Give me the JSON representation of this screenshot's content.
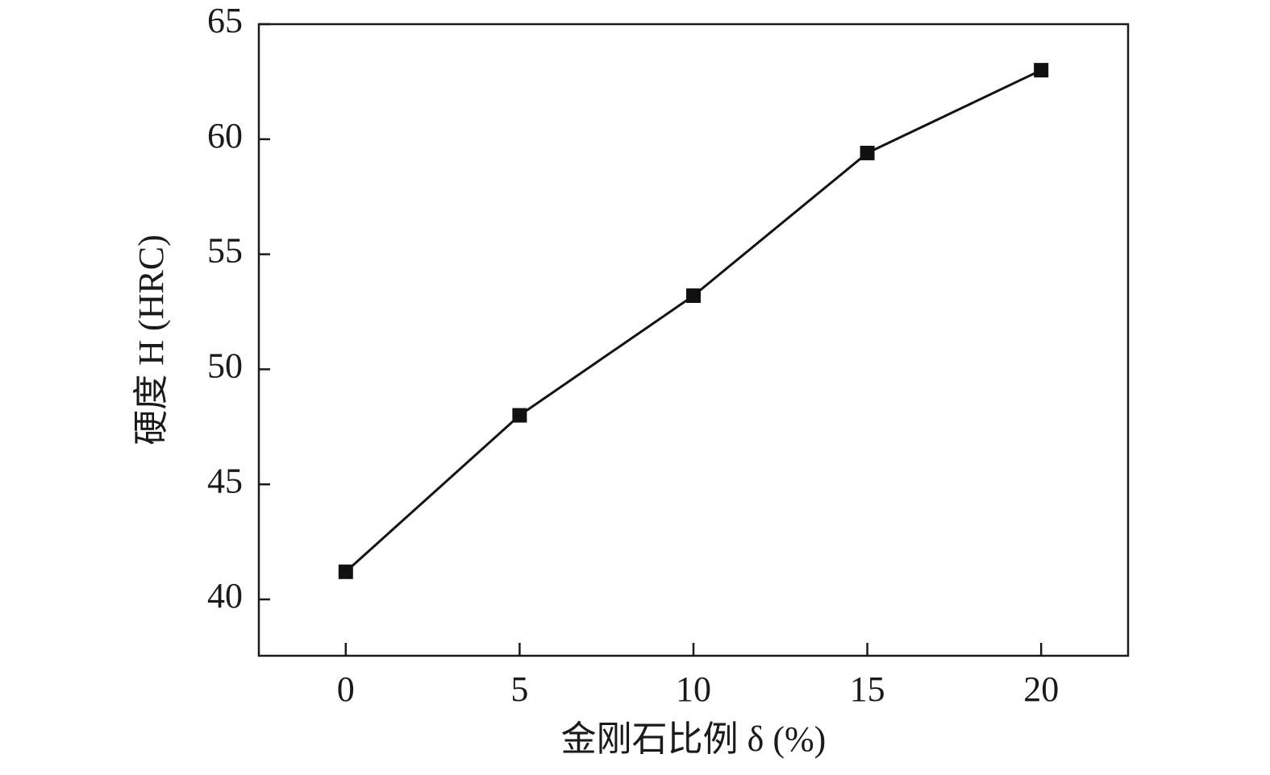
{
  "chart_data": {
    "type": "line",
    "x_label": "金刚石比例 δ (%)",
    "y_label": "硬度 H (HRC)",
    "x": [
      0,
      5,
      10,
      15,
      20
    ],
    "values": [
      41.2,
      48.0,
      53.2,
      59.4,
      63.0
    ],
    "color": "#111111",
    "marker": "square",
    "xlim": [
      -2.5,
      22.5
    ],
    "xticks": [
      0,
      5,
      10,
      15,
      20
    ],
    "ylim": [
      37.55,
      65
    ],
    "yticks": [
      40,
      45,
      50,
      55,
      60,
      65
    ],
    "grid": false
  }
}
